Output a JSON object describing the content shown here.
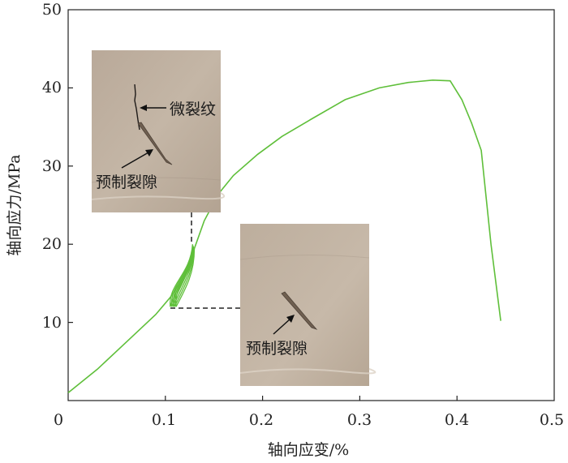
{
  "chart_data": {
    "type": "line",
    "xlabel": "轴向应变/%",
    "ylabel": "轴向应力/MPa",
    "xlim": [
      0,
      0.5
    ],
    "ylim": [
      0,
      50
    ],
    "x_ticks": [
      "0",
      "0.1",
      "0.2",
      "0.3",
      "0.4",
      "0.5"
    ],
    "y_ticks": [
      "10",
      "20",
      "30",
      "40",
      "50"
    ],
    "grid": false,
    "series": [
      {
        "color": "#5fbf3a",
        "points": [
          [
            0.0,
            1.0
          ],
          [
            0.03,
            4.0
          ],
          [
            0.06,
            7.5
          ],
          [
            0.09,
            11.0
          ],
          [
            0.105,
            13.2
          ],
          [
            0.12,
            16.0
          ],
          [
            0.13,
            19.5
          ],
          [
            0.14,
            23.0
          ],
          [
            0.155,
            26.5
          ],
          [
            0.17,
            28.8
          ],
          [
            0.195,
            31.5
          ],
          [
            0.22,
            33.8
          ],
          [
            0.25,
            36.0
          ],
          [
            0.285,
            38.5
          ],
          [
            0.32,
            40.0
          ],
          [
            0.35,
            40.7
          ],
          [
            0.375,
            41.0
          ],
          [
            0.393,
            40.9
          ],
          [
            0.405,
            38.5
          ],
          [
            0.415,
            35.5
          ],
          [
            0.425,
            32.0
          ],
          [
            0.435,
            20.0
          ],
          [
            0.445,
            10.2
          ]
        ]
      }
    ],
    "hysteresis_loops": {
      "color": "#5fbf3a",
      "strain_range": [
        0.105,
        0.128
      ],
      "stress_range": [
        12.0,
        20.0
      ],
      "count": 5
    },
    "annotations": [
      {
        "text": "微裂纹",
        "location": "upper-left inset"
      },
      {
        "text": "预制裂隙",
        "location": "upper-left inset"
      },
      {
        "text": "预制裂隙",
        "location": "lower-center inset"
      }
    ]
  }
}
